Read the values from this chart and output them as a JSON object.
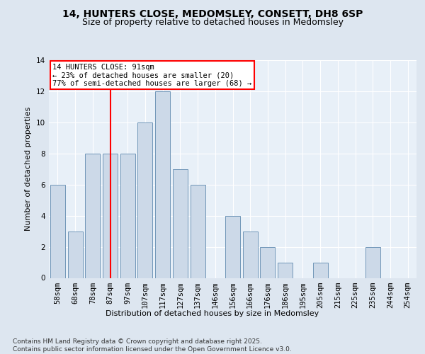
{
  "title_line1": "14, HUNTERS CLOSE, MEDOMSLEY, CONSETT, DH8 6SP",
  "title_line2": "Size of property relative to detached houses in Medomsley",
  "xlabel": "Distribution of detached houses by size in Medomsley",
  "ylabel": "Number of detached properties",
  "categories": [
    "58sqm",
    "68sqm",
    "78sqm",
    "87sqm",
    "97sqm",
    "107sqm",
    "117sqm",
    "127sqm",
    "137sqm",
    "146sqm",
    "156sqm",
    "166sqm",
    "176sqm",
    "186sqm",
    "195sqm",
    "205sqm",
    "215sqm",
    "225sqm",
    "235sqm",
    "244sqm",
    "254sqm"
  ],
  "values": [
    6,
    3,
    8,
    8,
    8,
    10,
    12,
    7,
    6,
    0,
    4,
    3,
    2,
    1,
    0,
    1,
    0,
    0,
    2,
    0,
    0
  ],
  "bar_color": "#ccd9e8",
  "bar_edge_color": "#7096b8",
  "red_line_x": 3,
  "annotation_text": "14 HUNTERS CLOSE: 91sqm\n← 23% of detached houses are smaller (20)\n77% of semi-detached houses are larger (68) →",
  "annotation_box_color": "white",
  "annotation_box_edge": "red",
  "ylim": [
    0,
    14
  ],
  "yticks": [
    0,
    2,
    4,
    6,
    8,
    10,
    12,
    14
  ],
  "footer_text": "Contains HM Land Registry data © Crown copyright and database right 2025.\nContains public sector information licensed under the Open Government Licence v3.0.",
  "bg_color": "#dde6f0",
  "plot_bg_color": "#e8f0f8",
  "grid_color": "white",
  "title_fontsize": 10,
  "subtitle_fontsize": 9,
  "xlabel_fontsize": 8,
  "ylabel_fontsize": 8,
  "tick_fontsize": 7.5,
  "annotation_fontsize": 7.5,
  "footer_fontsize": 6.5
}
